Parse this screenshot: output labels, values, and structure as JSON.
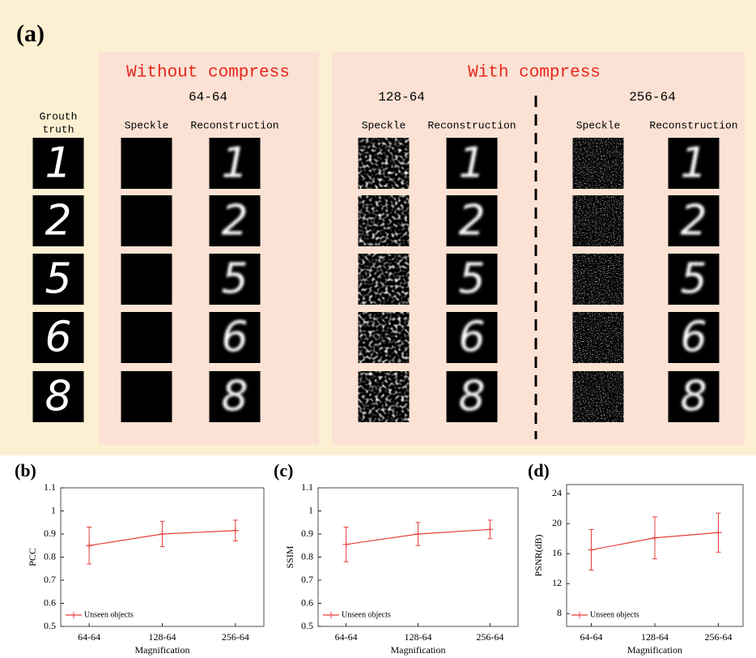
{
  "panel_a": {
    "label": "(a)",
    "ground_truth": [
      "Grouth",
      "truth"
    ],
    "digits": [
      "1",
      "2",
      "5",
      "6",
      "8"
    ],
    "without": {
      "title": "Without compress",
      "groups": [
        {
          "name": "64-64",
          "columns": [
            "Speckle",
            "Reconstruction"
          ]
        }
      ]
    },
    "with": {
      "title": "With compress",
      "groups": [
        {
          "name": "128-64",
          "columns": [
            "Speckle",
            "Reconstruction"
          ]
        },
        {
          "name": "256-64",
          "columns": [
            "Speckle",
            "Reconstruction"
          ]
        }
      ]
    }
  },
  "chart_data": [
    {
      "type": "line",
      "panel_label": "(b)",
      "ylabel": "PCC",
      "xlabel": "Magnification",
      "categories": [
        "64-64",
        "128-64",
        "256-64"
      ],
      "series": [
        {
          "name": "Unseen objects",
          "color": "#e8413b",
          "values": [
            0.85,
            0.9,
            0.915
          ],
          "errors": [
            0.08,
            0.055,
            0.045
          ]
        }
      ],
      "ylim": [
        0.5,
        1.1
      ],
      "yticks": [
        0.5,
        0.6,
        0.7,
        0.8,
        0.9,
        1,
        1.1
      ],
      "legend": "lower left"
    },
    {
      "type": "line",
      "panel_label": "(c)",
      "ylabel": "SSIM",
      "xlabel": "Magnification",
      "categories": [
        "64-64",
        "128-64",
        "256-64"
      ],
      "series": [
        {
          "name": "Unseen objects",
          "color": "#e8413b",
          "values": [
            0.855,
            0.9,
            0.92
          ],
          "errors": [
            0.075,
            0.05,
            0.04
          ]
        }
      ],
      "ylim": [
        0.5,
        1.1
      ],
      "yticks": [
        0.5,
        0.6,
        0.7,
        0.8,
        0.9,
        1,
        1.1
      ],
      "legend": "lower left"
    },
    {
      "type": "line",
      "panel_label": "(d)",
      "ylabel": "PSNR(dB)",
      "xlabel": "Magnification",
      "categories": [
        "64-64",
        "128-64",
        "256-64"
      ],
      "series": [
        {
          "name": "Unseen objects",
          "color": "#e8413b",
          "values": [
            16.5,
            18.1,
            18.8
          ],
          "errors": [
            2.7,
            2.8,
            2.6
          ]
        }
      ],
      "ylim": [
        6.3,
        25.2
      ],
      "yticks": [
        8,
        12,
        16,
        20,
        24
      ],
      "legend": "lower left"
    }
  ]
}
